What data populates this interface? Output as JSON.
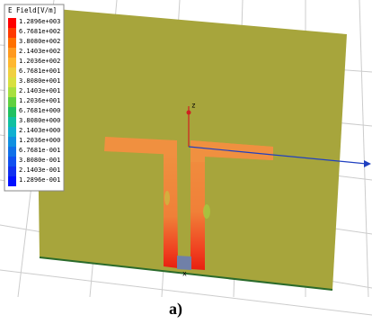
{
  "legend": {
    "title": "E Field[V/m]",
    "labels": [
      "1.2896e+003",
      "6.7681e+002",
      "3.8080e+002",
      "2.1403e+002",
      "1.2036e+002",
      "6.7681e+001",
      "3.8080e+001",
      "2.1403e+001",
      "1.2036e+001",
      "6.7681e+000",
      "3.8080e+000",
      "2.1403e+000",
      "1.2036e+000",
      "6.7681e-001",
      "3.8080e-001",
      "2.1403e-001",
      "1.2896e-001"
    ]
  },
  "axes": {
    "z": "z",
    "x": "x"
  },
  "caption": "a)"
}
